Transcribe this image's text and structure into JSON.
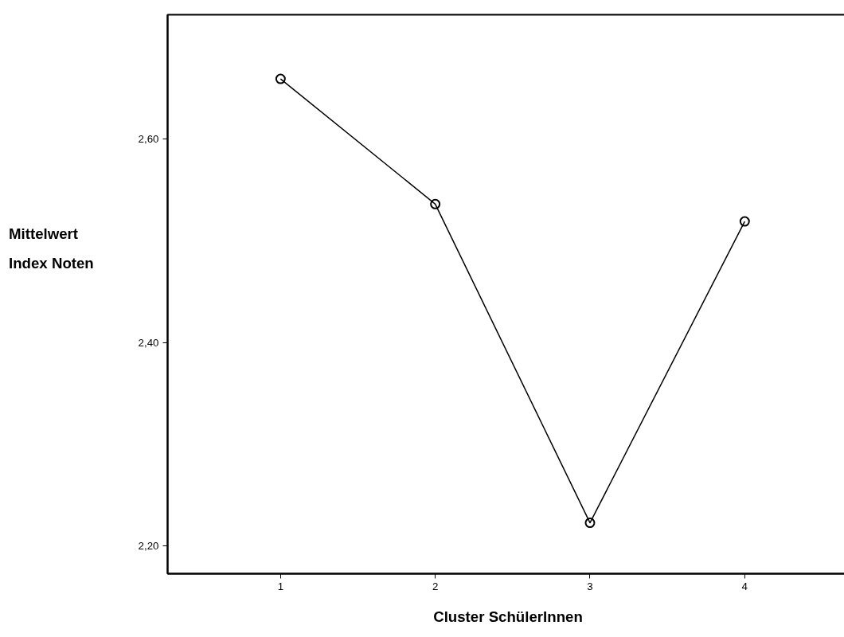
{
  "chart_data": {
    "type": "line",
    "xlabel": "Cluster SchülerInnen",
    "ylabel": "Mittelwert\nIndex Noten",
    "x": [
      1,
      2,
      3,
      4
    ],
    "series": [
      {
        "color": "#000000",
        "values": [
          2.659,
          2.536,
          2.223,
          2.519
        ]
      }
    ],
    "xlim": [
      0.27,
      4.67
    ],
    "xticks": [
      1,
      2,
      3,
      4
    ],
    "ylim": [
      2.173,
      2.722
    ],
    "yticks": [
      {
        "value": 2.2,
        "label": "2,20"
      },
      {
        "value": 2.4,
        "label": "2,40"
      },
      {
        "value": 2.6,
        "label": "2,60"
      }
    ],
    "grid": false,
    "marker": "circle",
    "line_style": "solid"
  }
}
